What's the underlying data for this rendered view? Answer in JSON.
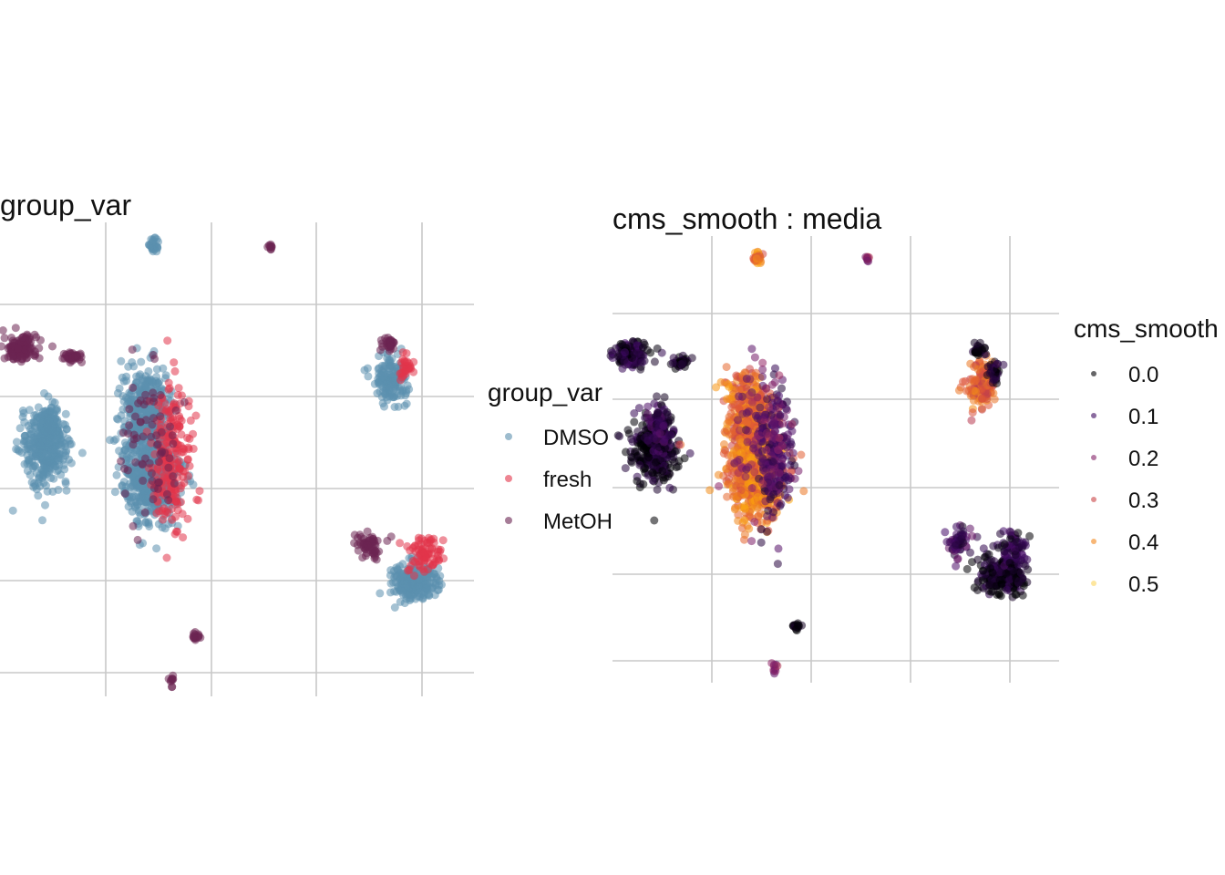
{
  "chart_data": [
    {
      "type": "scatter",
      "title": "group_var",
      "xlabel": "",
      "ylabel": "",
      "xlim": [
        -1.5,
        2.5
      ],
      "ylim": [
        -1.1,
        1.9
      ],
      "grid": true,
      "legend": {
        "title": "group_var",
        "placement": "right",
        "entries": [
          {
            "label": "DMSO",
            "color": "#5b8fae"
          },
          {
            "label": "fresh",
            "color": "#e2344a"
          },
          {
            "label": "MetOH",
            "color": "#6b2452"
          }
        ]
      },
      "clusters": [
        {
          "group": "MetOH",
          "cx": -1.33,
          "cy": 1.1,
          "sx": 0.07,
          "sy": 0.04,
          "n": 160
        },
        {
          "group": "MetOH",
          "cx": -0.88,
          "cy": 1.05,
          "sx": 0.04,
          "sy": 0.015,
          "n": 40
        },
        {
          "group": "DMSO",
          "cx": -1.12,
          "cy": 0.46,
          "sx": 0.1,
          "sy": 0.11,
          "n": 320
        },
        {
          "group": "DMSO",
          "cx": -1.08,
          "cy": 0.62,
          "sx": 0.05,
          "sy": 0.07,
          "n": 120
        },
        {
          "group": "DMSO",
          "cx": -0.28,
          "cy": 0.68,
          "sx": 0.1,
          "sy": 0.14,
          "n": 420
        },
        {
          "group": "DMSO",
          "cx": -0.22,
          "cy": 0.28,
          "sx": 0.12,
          "sy": 0.14,
          "n": 460
        },
        {
          "group": "fresh",
          "cx": -0.05,
          "cy": 0.42,
          "sx": 0.08,
          "sy": 0.22,
          "n": 220
        },
        {
          "group": "MetOH",
          "cx": -0.22,
          "cy": 0.5,
          "sx": 0.12,
          "sy": 0.25,
          "n": 70
        },
        {
          "group": "DMSO",
          "cx": -0.2,
          "cy": 1.75,
          "sx": 0.02,
          "sy": 0.02,
          "n": 30
        },
        {
          "group": "MetOH",
          "cx": 0.78,
          "cy": 1.75,
          "sx": 0.01,
          "sy": 0.01,
          "n": 10
        },
        {
          "group": "DMSO",
          "cx": 1.8,
          "cy": 0.9,
          "sx": 0.07,
          "sy": 0.08,
          "n": 140
        },
        {
          "group": "MetOH",
          "cx": 1.78,
          "cy": 1.13,
          "sx": 0.03,
          "sy": 0.02,
          "n": 30
        },
        {
          "group": "fresh",
          "cx": 1.92,
          "cy": 0.98,
          "sx": 0.03,
          "sy": 0.04,
          "n": 30
        },
        {
          "group": "DMSO",
          "cx": 1.98,
          "cy": -0.38,
          "sx": 0.1,
          "sy": 0.06,
          "n": 220
        },
        {
          "group": "fresh",
          "cx": 2.08,
          "cy": -0.2,
          "sx": 0.07,
          "sy": 0.06,
          "n": 80
        },
        {
          "group": "MetOH",
          "cx": 1.62,
          "cy": -0.15,
          "sx": 0.06,
          "sy": 0.05,
          "n": 60
        },
        {
          "group": "MetOH",
          "cx": 0.15,
          "cy": -0.72,
          "sx": 0.02,
          "sy": 0.015,
          "n": 15
        },
        {
          "group": "MetOH",
          "cx": -0.05,
          "cy": -1.0,
          "sx": 0.01,
          "sy": 0.02,
          "n": 10
        },
        {
          "group": "DMSO",
          "cx": -0.9,
          "cy": 0.5,
          "sx": 0.01,
          "sy": 0.01,
          "n": 2
        }
      ]
    },
    {
      "type": "scatter",
      "title": "cms_smooth : media",
      "xlabel": "",
      "ylabel": "",
      "xlim": [
        -1.5,
        2.5
      ],
      "ylim": [
        -1.1,
        1.9
      ],
      "grid": true,
      "color_scale": "inferno",
      "legend": {
        "title": "cms_smooth",
        "placement": "right",
        "entries": [
          {
            "label": "0.0",
            "value": 0.0
          },
          {
            "label": "0.1",
            "value": 0.1
          },
          {
            "label": "0.2",
            "value": 0.2
          },
          {
            "label": "0.3",
            "value": 0.3
          },
          {
            "label": "0.4",
            "value": 0.4
          },
          {
            "label": "0.5",
            "value": 0.5
          }
        ]
      },
      "clusters": [
        {
          "value": 0.05,
          "cx": -1.33,
          "cy": 1.1,
          "sx": 0.07,
          "sy": 0.04,
          "n": 160
        },
        {
          "value": 0.03,
          "cx": -0.88,
          "cy": 1.05,
          "sx": 0.04,
          "sy": 0.015,
          "n": 40
        },
        {
          "value": 0.02,
          "cx": -1.12,
          "cy": 0.46,
          "sx": 0.1,
          "sy": 0.11,
          "n": 320
        },
        {
          "value": 0.08,
          "cx": -1.08,
          "cy": 0.62,
          "sx": 0.05,
          "sy": 0.07,
          "n": 120
        },
        {
          "value": 0.36,
          "cx": -0.28,
          "cy": 0.68,
          "sx": 0.1,
          "sy": 0.14,
          "n": 420
        },
        {
          "value": 0.38,
          "cx": -0.22,
          "cy": 0.28,
          "sx": 0.12,
          "sy": 0.14,
          "n": 460
        },
        {
          "value": 0.12,
          "cx": -0.05,
          "cy": 0.42,
          "sx": 0.08,
          "sy": 0.22,
          "n": 220
        },
        {
          "value": 0.18,
          "cx": -0.22,
          "cy": 0.5,
          "sx": 0.12,
          "sy": 0.25,
          "n": 70
        },
        {
          "value": 0.38,
          "cx": -0.2,
          "cy": 1.75,
          "sx": 0.02,
          "sy": 0.02,
          "n": 30
        },
        {
          "value": 0.22,
          "cx": 0.78,
          "cy": 1.75,
          "sx": 0.01,
          "sy": 0.01,
          "n": 10
        },
        {
          "value": 0.34,
          "cx": 1.8,
          "cy": 0.9,
          "sx": 0.07,
          "sy": 0.08,
          "n": 140
        },
        {
          "value": 0.02,
          "cx": 1.78,
          "cy": 1.13,
          "sx": 0.03,
          "sy": 0.02,
          "n": 30
        },
        {
          "value": 0.04,
          "cx": 1.92,
          "cy": 0.98,
          "sx": 0.03,
          "sy": 0.04,
          "n": 30
        },
        {
          "value": 0.03,
          "cx": 1.98,
          "cy": -0.38,
          "sx": 0.1,
          "sy": 0.06,
          "n": 220
        },
        {
          "value": 0.06,
          "cx": 2.08,
          "cy": -0.2,
          "sx": 0.07,
          "sy": 0.06,
          "n": 80
        },
        {
          "value": 0.1,
          "cx": 1.62,
          "cy": -0.15,
          "sx": 0.06,
          "sy": 0.05,
          "n": 60
        },
        {
          "value": 0.0,
          "cx": 0.15,
          "cy": -0.72,
          "sx": 0.02,
          "sy": 0.015,
          "n": 15
        },
        {
          "value": 0.2,
          "cx": -0.05,
          "cy": -1.0,
          "sx": 0.01,
          "sy": 0.02,
          "n": 10
        },
        {
          "value": 0.3,
          "cx": -0.9,
          "cy": 0.5,
          "sx": 0.01,
          "sy": 0.01,
          "n": 2
        }
      ]
    }
  ]
}
